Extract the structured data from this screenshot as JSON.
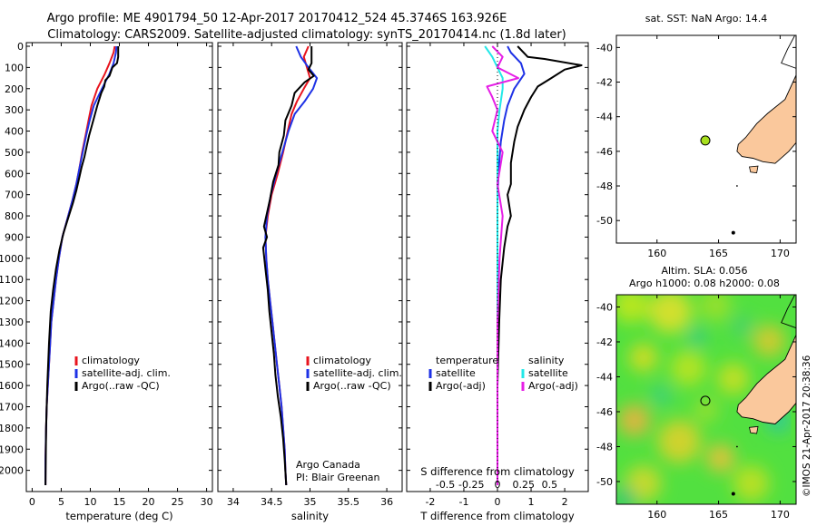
{
  "header": {
    "line1": "Argo profile: ME 4901794_50 12-Apr-2017 20170412_524 45.3746S 163.926E",
    "line2": "Climatology: CARS2009. Satellite-adjusted climatology: synTS_20170414.nc (1.8d later)"
  },
  "credit": {
    "line1": "Argo Canada",
    "line2": "PI: Blair Greenan"
  },
  "watermark": "©IMOS 21-Apr-2017 20:38:36",
  "colors": {
    "climatology": "#e8141e",
    "satellite": "#1e32e6",
    "argo": "#000000",
    "salinity_sat": "#22e8e8",
    "salinity_argo": "#e61ee6",
    "land": "#fac89c",
    "float_marker": "#a8e01e"
  },
  "chart_data": [
    {
      "type": "line",
      "name": "temperature-profile",
      "xlabel": "temperature (deg C)",
      "ylabel": "",
      "xlim": [
        -1,
        31
      ],
      "ylim": [
        2100,
        0
      ],
      "xticks": [
        0,
        5,
        10,
        15,
        20,
        25,
        30
      ],
      "yticks": [
        0,
        100,
        200,
        300,
        400,
        500,
        600,
        700,
        800,
        900,
        1000,
        1100,
        1200,
        1300,
        1400,
        1500,
        1600,
        1700,
        1800,
        1900,
        2000
      ],
      "legend": [
        "climatology",
        "satellite-adj. clim.",
        "Argo(..raw -QC)"
      ],
      "legend_position": "bottom-center",
      "series": [
        {
          "name": "climatology",
          "x": [
            14.2,
            14.0,
            13.3,
            12.5,
            11.2,
            10.2,
            9.7,
            9.2,
            8.6,
            8.1,
            7.6,
            6.9,
            6.1,
            5.2,
            4.6,
            4.1,
            3.7,
            3.3,
            3.1,
            2.9,
            2.7,
            2.5,
            2.4,
            2.3,
            2.3
          ],
          "y": [
            0,
            30,
            80,
            130,
            200,
            280,
            350,
            420,
            500,
            580,
            650,
            730,
            810,
            900,
            1000,
            1100,
            1200,
            1300,
            1400,
            1500,
            1600,
            1700,
            1800,
            1950,
            2070
          ]
        },
        {
          "name": "satellite-adj. clim.",
          "x": [
            14.5,
            14.4,
            14.0,
            13.3,
            12.0,
            10.6,
            9.9,
            9.3,
            8.7,
            8.1,
            7.6,
            6.9,
            6.1,
            5.2,
            4.6,
            4.1,
            3.7,
            3.3,
            3.1,
            2.9,
            2.7,
            2.5,
            2.4,
            2.3,
            2.3
          ],
          "y": [
            0,
            30,
            80,
            130,
            200,
            280,
            350,
            420,
            500,
            580,
            650,
            730,
            810,
            900,
            1000,
            1100,
            1200,
            1300,
            1400,
            1500,
            1600,
            1700,
            1800,
            1950,
            2070
          ]
        },
        {
          "name": "Argo(..raw -QC)",
          "x": [
            14.8,
            14.8,
            14.6,
            13.8,
            13.3,
            12.6,
            12.4,
            11.9,
            11.2,
            10.7,
            10.2,
            9.8,
            9.4,
            9.0,
            8.5,
            8.1,
            7.6,
            7.0,
            6.2,
            5.4,
            4.7,
            4.1,
            3.6,
            3.2,
            2.9,
            2.6,
            2.4,
            2.3
          ],
          "y": [
            0,
            50,
            80,
            100,
            140,
            160,
            190,
            220,
            280,
            330,
            380,
            420,
            470,
            520,
            570,
            620,
            680,
            740,
            810,
            880,
            960,
            1050,
            1150,
            1250,
            1400,
            1600,
            1800,
            2070
          ]
        }
      ]
    },
    {
      "type": "line",
      "name": "salinity-profile",
      "xlabel": "salinity",
      "ylabel": "",
      "xlim": [
        33.8,
        36.2
      ],
      "ylim": [
        2100,
        0
      ],
      "xticks": [
        34,
        34.5,
        35,
        35.5,
        36
      ],
      "xtick_labels": [
        "34",
        "34.5",
        "35",
        "35.5",
        "36"
      ],
      "legend": [
        "climatology",
        "satellite-adj. clim.",
        "Argo(..raw -QC)"
      ],
      "legend_position": "bottom-right",
      "series": [
        {
          "name": "climatology",
          "x": [
            34.98,
            34.92,
            34.96,
            35.0,
            34.92,
            34.83,
            34.76,
            34.71,
            34.65,
            34.58,
            34.5,
            34.45,
            34.42,
            34.43,
            34.45,
            34.48,
            34.51,
            34.54,
            34.57,
            34.6,
            34.63,
            34.65,
            34.67,
            34.68,
            34.69
          ],
          "y": [
            0,
            50,
            100,
            150,
            200,
            260,
            320,
            400,
            500,
            600,
            700,
            800,
            900,
            1000,
            1100,
            1200,
            1300,
            1400,
            1500,
            1600,
            1700,
            1800,
            1900,
            2000,
            2070
          ]
        },
        {
          "name": "satellite-adj. clim.",
          "x": [
            34.82,
            34.88,
            34.98,
            35.09,
            35.04,
            34.93,
            34.8,
            34.72,
            34.64,
            34.56,
            34.49,
            34.44,
            34.42,
            34.43,
            34.45,
            34.48,
            34.51,
            34.54,
            34.57,
            34.6,
            34.63,
            34.65,
            34.67,
            34.68,
            34.69
          ],
          "y": [
            0,
            50,
            100,
            150,
            200,
            260,
            320,
            400,
            500,
            600,
            700,
            800,
            900,
            1000,
            1100,
            1200,
            1300,
            1400,
            1500,
            1600,
            1700,
            1800,
            1900,
            2000,
            2070
          ]
        },
        {
          "name": "Argo(..raw -QC)",
          "x": [
            35.02,
            35.02,
            34.98,
            35.05,
            34.93,
            34.8,
            34.76,
            34.68,
            34.66,
            34.6,
            34.59,
            34.52,
            34.48,
            34.4,
            34.44,
            34.39,
            34.42,
            34.45,
            34.47,
            34.5,
            34.53,
            34.55,
            34.58,
            34.62,
            34.65,
            34.67,
            34.69
          ],
          "y": [
            0,
            80,
            110,
            140,
            170,
            220,
            280,
            350,
            420,
            500,
            560,
            640,
            720,
            850,
            900,
            950,
            1050,
            1150,
            1250,
            1350,
            1450,
            1550,
            1650,
            1750,
            1850,
            1950,
            2070
          ]
        }
      ]
    },
    {
      "type": "line",
      "name": "difference-profile",
      "xlabel": "T difference from climatology",
      "top_label": "S difference from climatology",
      "xlim": [
        -2.7,
        2.7
      ],
      "ylim": [
        2100,
        0
      ],
      "xticks": [
        -2,
        -1,
        0,
        1,
        2
      ],
      "s_ticks": [
        -0.5,
        -0.25,
        0,
        0.25,
        0.5
      ],
      "s_tick_labels": [
        "-0.5",
        "-0.25",
        "0",
        "0.25",
        "0.5"
      ],
      "legend_temperature_title": "temperature",
      "legend_salinity_title": "salinity",
      "legend": [
        "satellite",
        "Argo(-adj)",
        "satellite",
        "Argo(-adj)"
      ],
      "legend_position": "bottom-center",
      "series": [
        {
          "name": "temperature satellite",
          "x": [
            0.3,
            0.4,
            0.7,
            0.8,
            0.5,
            0.3,
            0.2,
            0.1,
            0.05,
            0.0,
            0.0,
            0.0,
            0.0,
            0.0,
            0.0
          ],
          "y": [
            0,
            30,
            80,
            130,
            200,
            280,
            350,
            450,
            550,
            700,
            900,
            1100,
            1400,
            1800,
            2070
          ]
        },
        {
          "name": "temperature Argo(-adj)",
          "x": [
            0.6,
            0.9,
            1.4,
            2.5,
            2.0,
            1.6,
            1.2,
            1.0,
            0.8,
            0.6,
            0.5,
            0.4,
            0.4,
            0.3,
            0.4,
            0.3,
            0.2,
            0.1,
            0.05,
            0.0,
            0.0
          ],
          "y": [
            0,
            50,
            60,
            90,
            110,
            150,
            190,
            240,
            300,
            380,
            450,
            550,
            650,
            700,
            800,
            850,
            950,
            1100,
            1300,
            1600,
            2070
          ]
        },
        {
          "name": "salinity satellite",
          "x": [
            -0.12,
            -0.05,
            0.0,
            0.05,
            0.05,
            0.02,
            0.0,
            0.0,
            0.0,
            0.0,
            0.0
          ],
          "y": [
            0,
            50,
            100,
            150,
            200,
            300,
            400,
            600,
            900,
            1300,
            2070
          ]
        },
        {
          "name": "salinity Argo(-adj)",
          "x": [
            -0.05,
            0.05,
            0.0,
            0.2,
            -0.1,
            -0.05,
            0.0,
            -0.05,
            0.05,
            0.0,
            0.05,
            0.02,
            0.0,
            0.0
          ],
          "y": [
            0,
            50,
            100,
            150,
            190,
            240,
            300,
            400,
            500,
            650,
            800,
            1000,
            1300,
            2070
          ]
        }
      ]
    },
    {
      "type": "scatter",
      "name": "sst-map",
      "title": "sat. SST: NaN Argo: 14.4",
      "xlim": [
        156.7,
        171.3
      ],
      "ylim": [
        -51.3,
        -39.3
      ],
      "xticks": [
        160,
        165,
        170
      ],
      "yticks": [
        -40,
        -42,
        -44,
        -46,
        -48,
        -50
      ],
      "x": [
        163.926
      ],
      "y": [
        -45.3746
      ]
    },
    {
      "type": "heatmap",
      "name": "sla-map",
      "title_line1": "Altim. SLA: 0.056",
      "title_line2": "Argo h1000: 0.08 h2000: 0.08",
      "xlim": [
        156.7,
        171.3
      ],
      "ylim": [
        -51.3,
        -39.3
      ],
      "xticks": [
        160,
        165,
        170
      ],
      "yticks": [
        -40,
        -42,
        -44,
        -46,
        -48,
        -50
      ],
      "x": [
        163.926
      ],
      "y": [
        -45.3746
      ]
    }
  ]
}
